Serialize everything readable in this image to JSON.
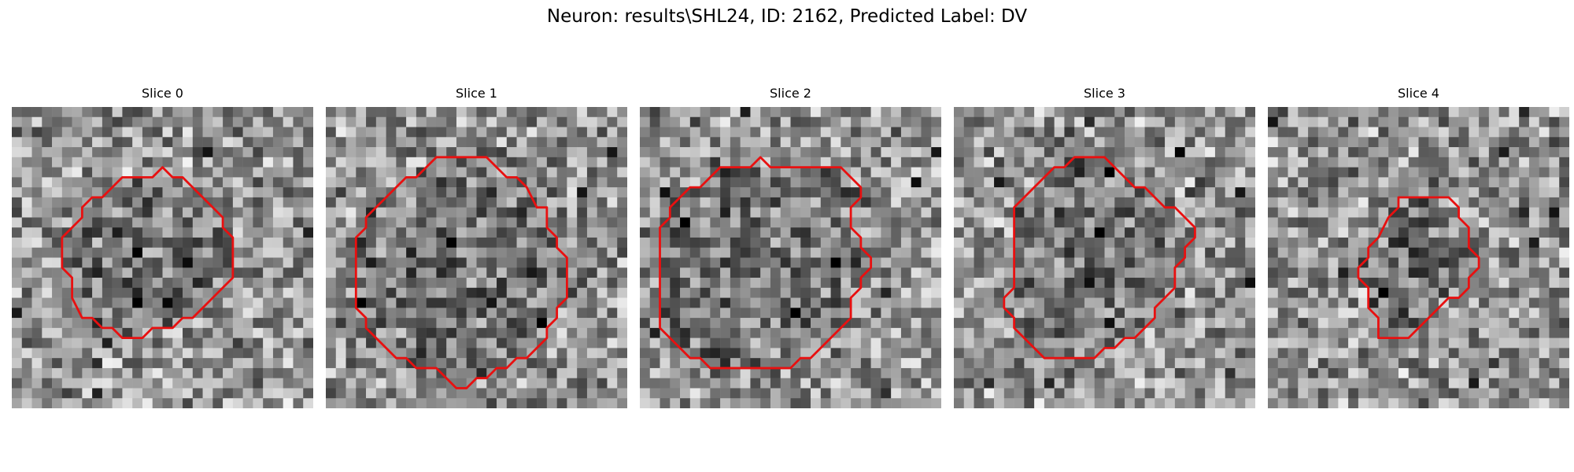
{
  "figure": {
    "title": "Neuron: results\\SHL24, ID: 2162, Predicted Label: DV"
  },
  "style": {
    "contour_color": "#e81010"
  },
  "slices": [
    {
      "title": "Slice 0",
      "seed": 11,
      "contour": [
        [
          15,
          6
        ],
        [
          16,
          7
        ],
        [
          17,
          7
        ],
        [
          19,
          9
        ],
        [
          20,
          10
        ],
        [
          21,
          11
        ],
        [
          21,
          12
        ],
        [
          22,
          13
        ],
        [
          22,
          17
        ],
        [
          21,
          18
        ],
        [
          20,
          19
        ],
        [
          19,
          20
        ],
        [
          18,
          21
        ],
        [
          17,
          21
        ],
        [
          16,
          22
        ],
        [
          14,
          22
        ],
        [
          13,
          23
        ],
        [
          11,
          23
        ],
        [
          10,
          22
        ],
        [
          9,
          22
        ],
        [
          8,
          21
        ],
        [
          7,
          21
        ],
        [
          6,
          19
        ],
        [
          6,
          17
        ],
        [
          5,
          16
        ],
        [
          5,
          13
        ],
        [
          6,
          12
        ],
        [
          7,
          11
        ],
        [
          7,
          10
        ],
        [
          8,
          9
        ],
        [
          9,
          9
        ],
        [
          10,
          8
        ],
        [
          11,
          7
        ],
        [
          14,
          7
        ]
      ]
    },
    {
      "title": "Slice 1",
      "seed": 23,
      "contour": [
        [
          11,
          5
        ],
        [
          16,
          5
        ],
        [
          17,
          6
        ],
        [
          18,
          7
        ],
        [
          19,
          7
        ],
        [
          20,
          8
        ],
        [
          21,
          10
        ],
        [
          22,
          10
        ],
        [
          22,
          12
        ],
        [
          23,
          13
        ],
        [
          23,
          14
        ],
        [
          24,
          15
        ],
        [
          24,
          19
        ],
        [
          23,
          20
        ],
        [
          23,
          21
        ],
        [
          22,
          22
        ],
        [
          22,
          23
        ],
        [
          20,
          25
        ],
        [
          19,
          25
        ],
        [
          18,
          26
        ],
        [
          17,
          26
        ],
        [
          16,
          27
        ],
        [
          15,
          27
        ],
        [
          14,
          28
        ],
        [
          13,
          28
        ],
        [
          12,
          27
        ],
        [
          11,
          26
        ],
        [
          9,
          26
        ],
        [
          8,
          25
        ],
        [
          7,
          25
        ],
        [
          6,
          24
        ],
        [
          5,
          23
        ],
        [
          4,
          22
        ],
        [
          4,
          21
        ],
        [
          3,
          20
        ],
        [
          3,
          13
        ],
        [
          4,
          12
        ],
        [
          4,
          11
        ],
        [
          5,
          10
        ],
        [
          6,
          9
        ],
        [
          7,
          8
        ],
        [
          8,
          7
        ],
        [
          9,
          7
        ],
        [
          10,
          6
        ]
      ]
    },
    {
      "title": "Slice 2",
      "seed": 37,
      "contour": [
        [
          12,
          5
        ],
        [
          13,
          6
        ],
        [
          20,
          6
        ],
        [
          21,
          7
        ],
        [
          22,
          8
        ],
        [
          22,
          9
        ],
        [
          21,
          10
        ],
        [
          21,
          12
        ],
        [
          22,
          13
        ],
        [
          22,
          14
        ],
        [
          23,
          15
        ],
        [
          23,
          16
        ],
        [
          22,
          17
        ],
        [
          22,
          18
        ],
        [
          21,
          19
        ],
        [
          21,
          21
        ],
        [
          20,
          22
        ],
        [
          19,
          23
        ],
        [
          18,
          24
        ],
        [
          17,
          25
        ],
        [
          16,
          25
        ],
        [
          15,
          26
        ],
        [
          7,
          26
        ],
        [
          6,
          25
        ],
        [
          5,
          25
        ],
        [
          4,
          24
        ],
        [
          3,
          23
        ],
        [
          2,
          22
        ],
        [
          2,
          12
        ],
        [
          3,
          11
        ],
        [
          3,
          10
        ],
        [
          4,
          9
        ],
        [
          5,
          8
        ],
        [
          6,
          8
        ],
        [
          7,
          7
        ],
        [
          8,
          6
        ],
        [
          11,
          6
        ]
      ]
    },
    {
      "title": "Slice 3",
      "seed": 51,
      "contour": [
        [
          12,
          5
        ],
        [
          15,
          5
        ],
        [
          16,
          6
        ],
        [
          17,
          7
        ],
        [
          18,
          8
        ],
        [
          19,
          8
        ],
        [
          20,
          9
        ],
        [
          21,
          10
        ],
        [
          22,
          10
        ],
        [
          23,
          11
        ],
        [
          24,
          12
        ],
        [
          24,
          13
        ],
        [
          23,
          14
        ],
        [
          23,
          15
        ],
        [
          22,
          16
        ],
        [
          22,
          18
        ],
        [
          21,
          19
        ],
        [
          20,
          20
        ],
        [
          20,
          21
        ],
        [
          19,
          22
        ],
        [
          18,
          23
        ],
        [
          17,
          23
        ],
        [
          16,
          24
        ],
        [
          15,
          24
        ],
        [
          14,
          25
        ],
        [
          10,
          25
        ],
        [
          9,
          25
        ],
        [
          8,
          24
        ],
        [
          7,
          23
        ],
        [
          6,
          22
        ],
        [
          6,
          21
        ],
        [
          5,
          20
        ],
        [
          5,
          19
        ],
        [
          6,
          18
        ],
        [
          6,
          10
        ],
        [
          7,
          9
        ],
        [
          8,
          8
        ],
        [
          9,
          7
        ],
        [
          10,
          6
        ],
        [
          11,
          6
        ]
      ]
    },
    {
      "title": "Slice 4",
      "seed": 64,
      "contour": [
        [
          13,
          9
        ],
        [
          18,
          9
        ],
        [
          19,
          10
        ],
        [
          19,
          11
        ],
        [
          20,
          12
        ],
        [
          20,
          14
        ],
        [
          21,
          15
        ],
        [
          21,
          16
        ],
        [
          20,
          17
        ],
        [
          20,
          18
        ],
        [
          19,
          19
        ],
        [
          18,
          19
        ],
        [
          17,
          20
        ],
        [
          16,
          21
        ],
        [
          15,
          22
        ],
        [
          14,
          23
        ],
        [
          11,
          23
        ],
        [
          11,
          21
        ],
        [
          10,
          20
        ],
        [
          10,
          18
        ],
        [
          9,
          17
        ],
        [
          9,
          16
        ],
        [
          10,
          15
        ],
        [
          10,
          14
        ],
        [
          11,
          13
        ],
        [
          12,
          11
        ],
        [
          13,
          10
        ]
      ]
    }
  ]
}
